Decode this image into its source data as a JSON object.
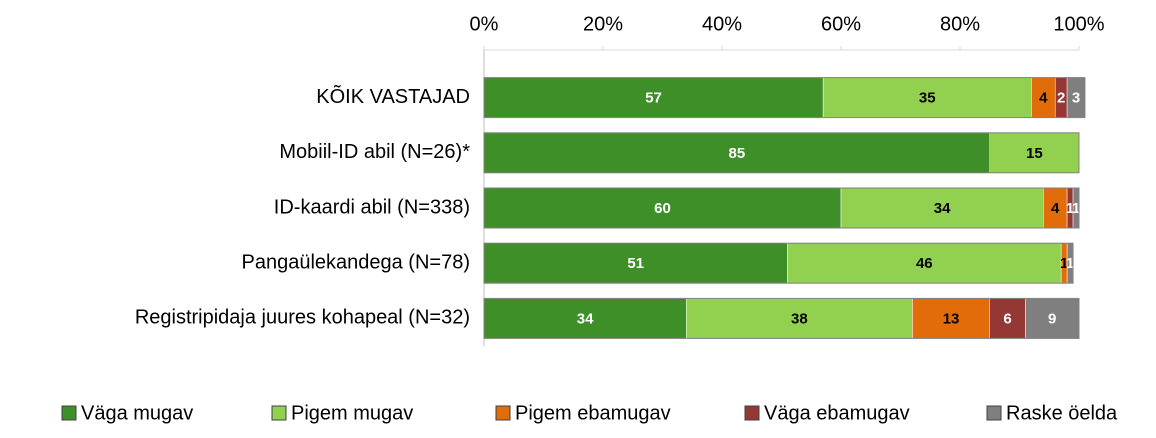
{
  "chart_data": {
    "type": "stacked_bar_horizontal",
    "categories": [
      "KÕIK VASTAJAD",
      "Mobiil-ID abil (N=26)*",
      "ID-kaardi abil (N=338)",
      "Pangaülekandega (N=78)",
      "Registripidaja juures kohapeal (N=32)"
    ],
    "series": [
      {
        "name": "Väga mugav",
        "color": "#3f8f29",
        "label_color": "#ffffff",
        "values": [
          57,
          85,
          60,
          51,
          34
        ]
      },
      {
        "name": "Pigem mugav",
        "color": "#92d050",
        "label_color": "#000000",
        "values": [
          35,
          15,
          34,
          46,
          38
        ]
      },
      {
        "name": "Pigem ebamugav",
        "color": "#e36c0a",
        "label_color": "#000000",
        "values": [
          4,
          0,
          4,
          1,
          13
        ]
      },
      {
        "name": "Väga ebamugav",
        "color": "#953735",
        "label_color": "#ffffff",
        "values": [
          2,
          0,
          1,
          0,
          6
        ]
      },
      {
        "name": "Raske öelda",
        "color": "#7f7f7f",
        "label_color": "#ffffff",
        "values": [
          3,
          0,
          1,
          1,
          9
        ]
      }
    ],
    "xlim": [
      0,
      100
    ],
    "xticks": [
      {
        "value": 0,
        "label": "0%"
      },
      {
        "value": 20,
        "label": "20%"
      },
      {
        "value": 40,
        "label": "40%"
      },
      {
        "value": 60,
        "label": "60%"
      },
      {
        "value": 80,
        "label": "80%"
      },
      {
        "value": 100,
        "label": "100%"
      }
    ],
    "legend": "bottom"
  }
}
